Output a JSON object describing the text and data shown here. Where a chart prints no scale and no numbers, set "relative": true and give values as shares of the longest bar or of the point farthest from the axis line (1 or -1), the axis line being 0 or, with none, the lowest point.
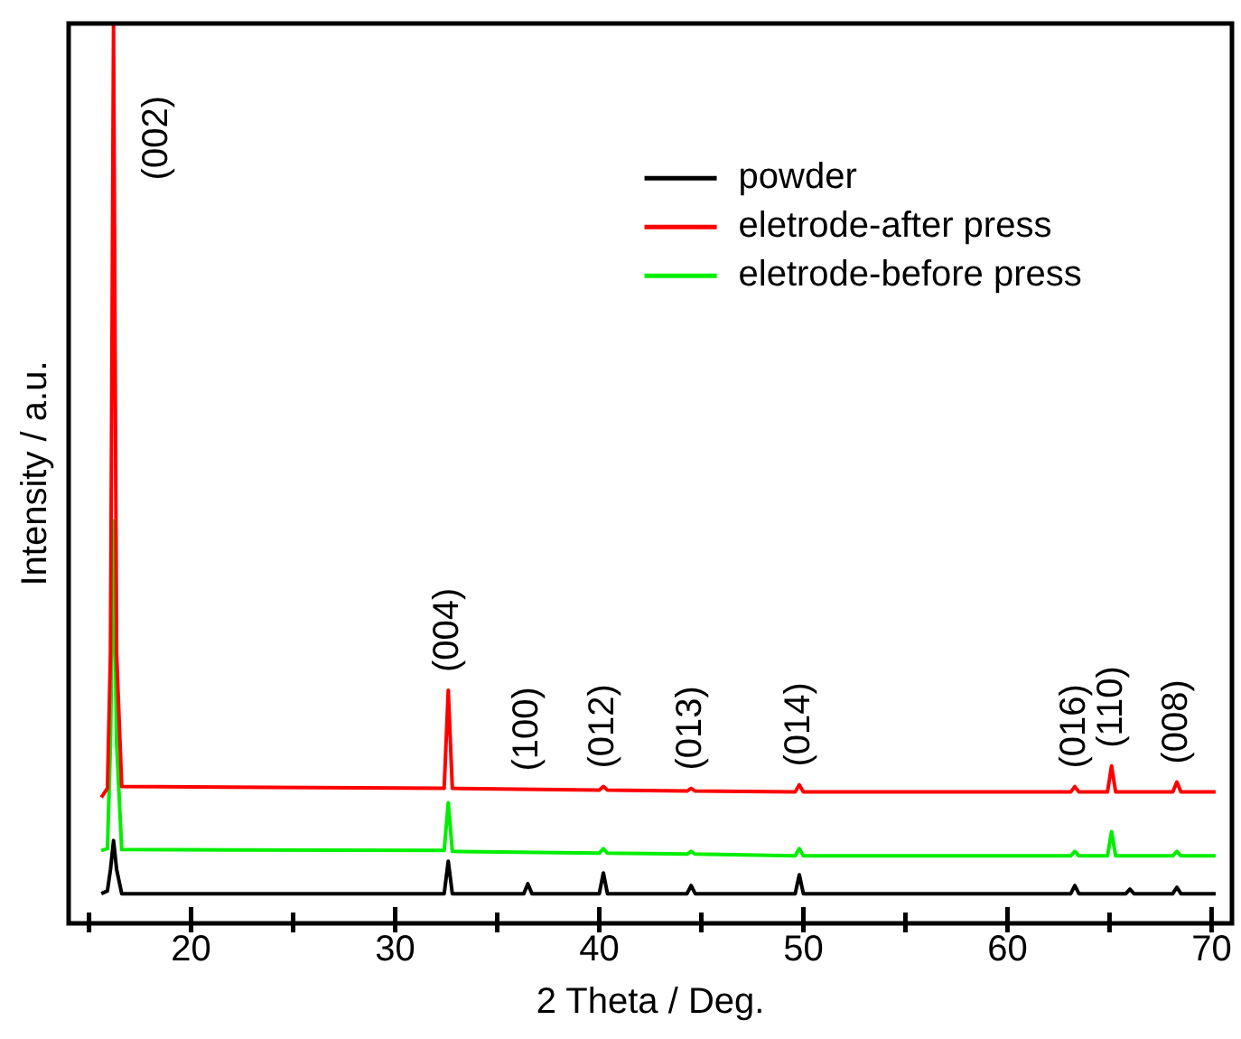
{
  "chart_data": {
    "type": "line",
    "relative": true,
    "xlabel": "2 Theta / Deg.",
    "ylabel": "Intensity / a.u.",
    "xlim": [
      14,
      71
    ],
    "xticks": [
      {
        "value": 15,
        "label": null
      },
      20,
      {
        "value": 25,
        "label": null
      },
      30,
      {
        "value": 35,
        "label": null
      },
      40,
      {
        "value": 45,
        "label": null
      },
      50,
      {
        "value": 55,
        "label": null
      },
      60,
      {
        "value": 65,
        "label": null
      },
      70
    ],
    "legend": "top right",
    "marker": "none",
    "line_style": "solid",
    "series": [
      {
        "name": "powder",
        "color": "#000000",
        "x": [
          15.6,
          15.9,
          16.05,
          16.2,
          16.35,
          16.6,
          32.4,
          32.6,
          32.8,
          36.3,
          36.5,
          36.7,
          40.0,
          40.2,
          40.4,
          44.3,
          44.5,
          44.7,
          49.6,
          49.8,
          50.0,
          63.1,
          63.3,
          63.5,
          65.8,
          66.0,
          66.2,
          68.1,
          68.3,
          68.5,
          70.2
        ],
        "values": [
          0.033,
          0.036,
          0.06,
          0.092,
          0.06,
          0.033,
          0.033,
          0.069,
          0.033,
          0.033,
          0.044,
          0.033,
          0.033,
          0.056,
          0.033,
          0.033,
          0.042,
          0.033,
          0.033,
          0.054,
          0.033,
          0.033,
          0.042,
          0.033,
          0.033,
          0.038,
          0.033,
          0.033,
          0.04,
          0.033,
          0.033
        ]
      },
      {
        "name": "eletrode-after press",
        "color": "#ff0000",
        "x": [
          15.6,
          15.9,
          16.05,
          16.2,
          16.35,
          16.6,
          32.4,
          32.6,
          32.8,
          40.0,
          40.2,
          40.4,
          44.3,
          44.5,
          44.7,
          49.6,
          49.8,
          50.0,
          63.1,
          63.3,
          63.5,
          64.9,
          65.1,
          65.3,
          68.1,
          68.3,
          68.5,
          70.2
        ],
        "values": [
          0.14,
          0.15,
          0.3,
          1,
          0.3,
          0.152,
          0.15,
          0.259,
          0.15,
          0.148,
          0.152,
          0.148,
          0.147,
          0.15,
          0.147,
          0.146,
          0.154,
          0.146,
          0.146,
          0.152,
          0.146,
          0.146,
          0.175,
          0.146,
          0.146,
          0.157,
          0.146,
          0.146
        ]
      },
      {
        "name": "eletrode-before press",
        "color": "#00ee00",
        "x": [
          15.6,
          15.9,
          16.05,
          16.2,
          16.35,
          16.6,
          32.4,
          32.6,
          32.8,
          40.0,
          40.2,
          40.4,
          44.3,
          44.5,
          44.7,
          49.6,
          49.8,
          50.0,
          63.1,
          63.3,
          63.5,
          64.9,
          65.1,
          65.3,
          68.1,
          68.3,
          68.5,
          70.2
        ],
        "values": [
          0.081,
          0.083,
          0.2,
          0.447,
          0.2,
          0.082,
          0.081,
          0.134,
          0.08,
          0.078,
          0.083,
          0.078,
          0.077,
          0.08,
          0.077,
          0.075,
          0.083,
          0.075,
          0.075,
          0.08,
          0.075,
          0.075,
          0.102,
          0.075,
          0.075,
          0.08,
          0.075,
          0.075
        ]
      }
    ],
    "annotations": [
      {
        "text": "(002)",
        "x": 16.2,
        "y": 1
      },
      {
        "text": "(004)",
        "x": 32.6,
        "y": 0.259
      },
      {
        "text": "(100)",
        "x": 36.5,
        "y": 0.149
      },
      {
        "text": "(012)",
        "x": 40.2,
        "y": 0.152
      },
      {
        "text": "(013)",
        "x": 44.5,
        "y": 0.15
      },
      {
        "text": "(014)",
        "x": 49.8,
        "y": 0.154
      },
      {
        "text": "(016)",
        "x": 63.3,
        "y": 0.152
      },
      {
        "text": "(110)",
        "x": 65.1,
        "y": 0.175
      },
      {
        "text": "(008)",
        "x": 68.3,
        "y": 0.157
      }
    ]
  }
}
